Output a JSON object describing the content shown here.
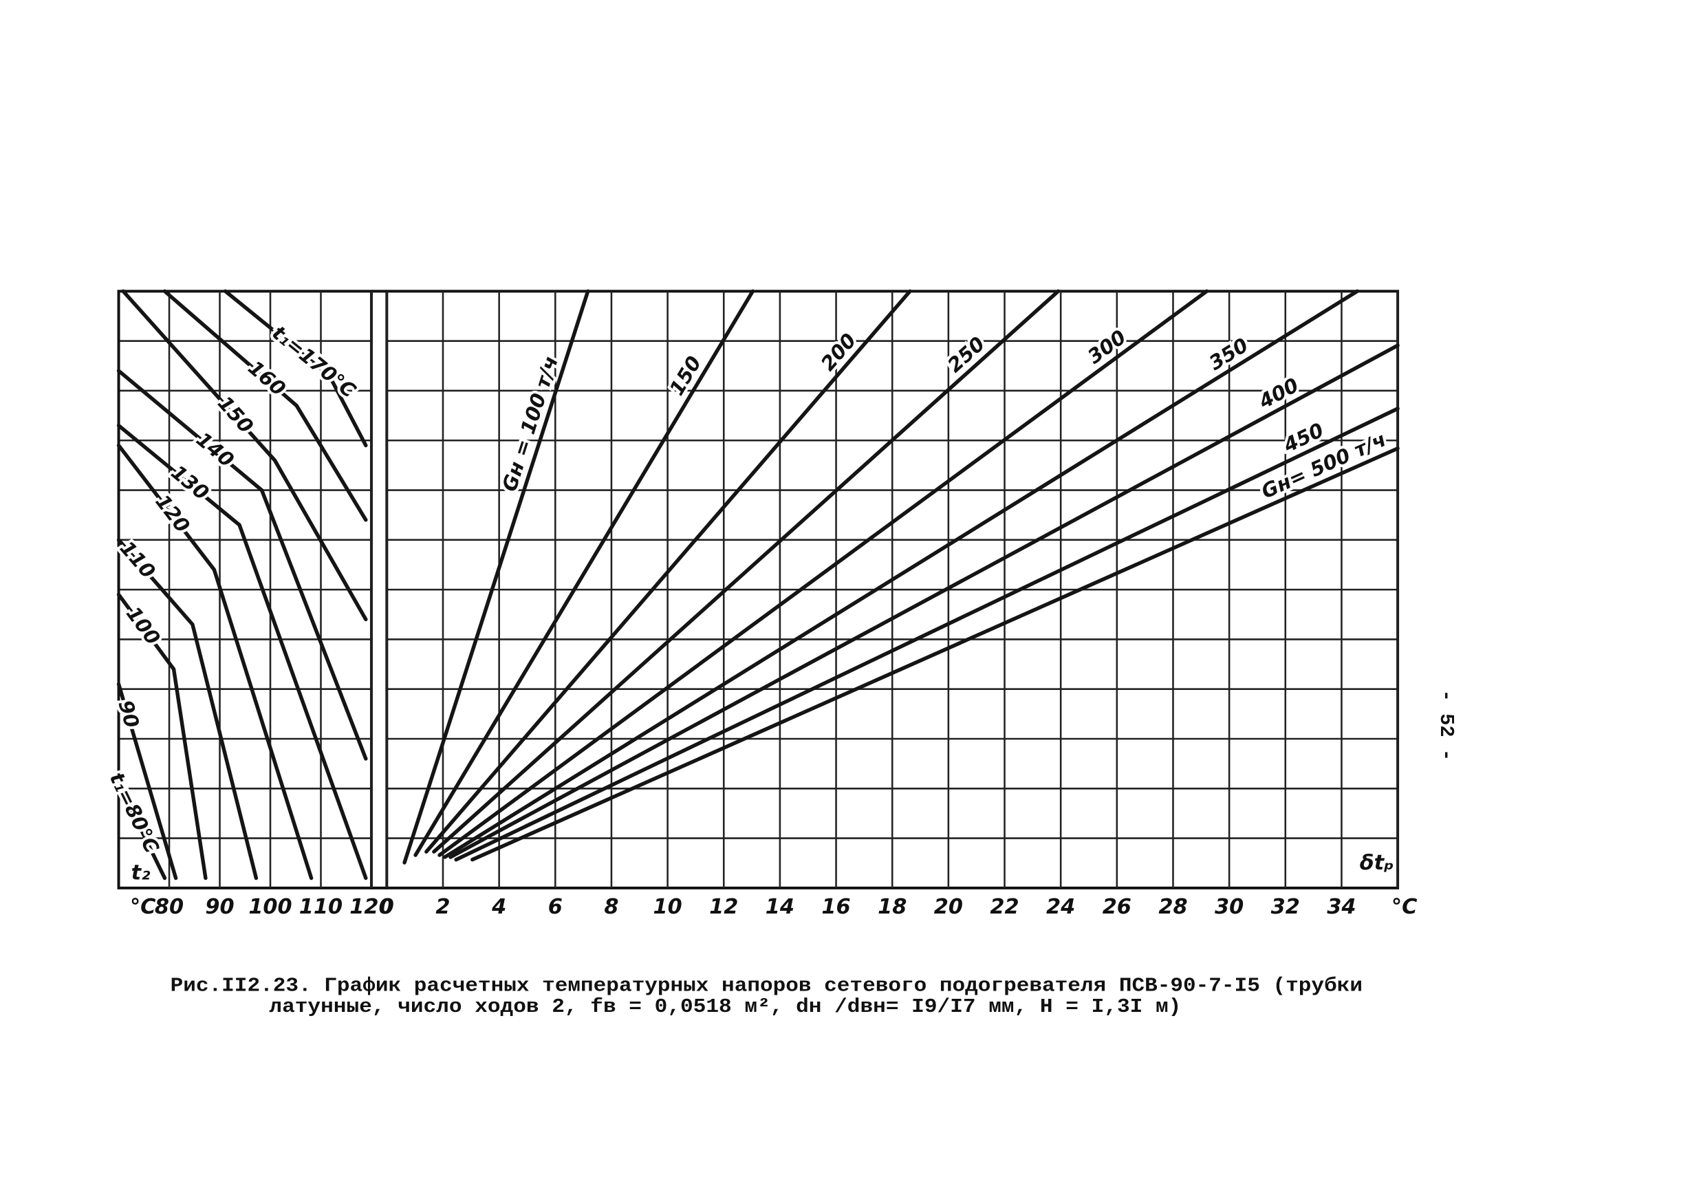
{
  "chart_data": [
    {
      "type": "line",
      "x_label": "t₂",
      "x_unit": "°C",
      "xlim": [
        70,
        120
      ],
      "xticks": [
        80,
        90,
        100,
        110,
        120
      ],
      "ylim": [
        0,
        12
      ],
      "grid": true,
      "color": "#151515",
      "series": [
        {
          "name": "t₁=170°C",
          "x": [
            91.1,
            111.7,
            118.9
          ],
          "values": [
            12,
            10.3,
            8.9
          ]
        },
        {
          "name": "160",
          "x": [
            79.1,
            105.2,
            118.9
          ],
          "values": [
            12,
            9.7,
            7.4
          ]
        },
        {
          "name": "150",
          "x": [
            70.9,
            100.9,
            118.9
          ],
          "values": [
            12,
            8.6,
            5.4
          ]
        },
        {
          "name": "140",
          "x": [
            70,
            98.3,
            118.9
          ],
          "values": [
            10.4,
            8.0,
            2.6
          ]
        },
        {
          "name": "130",
          "x": [
            70,
            93.9,
            118.9
          ],
          "values": [
            9.3,
            7.3,
            0.2
          ]
        },
        {
          "name": "120",
          "x": [
            70,
            88.9,
            108.1
          ],
          "values": [
            8.9,
            6.4,
            0.2
          ]
        },
        {
          "name": "110",
          "x": [
            70,
            84.6,
            97.2
          ],
          "values": [
            7.0,
            5.3,
            0.2
          ]
        },
        {
          "name": "100",
          "x": [
            70,
            80.9,
            87.2
          ],
          "values": [
            5.9,
            4.4,
            0.2
          ]
        },
        {
          "name": "90",
          "x": [
            70,
            81.3
          ],
          "values": [
            4.1,
            0.2
          ]
        },
        {
          "name": "t₁=80°C",
          "x": [
            70,
            79.1
          ],
          "values": [
            2.1,
            0.2
          ]
        }
      ]
    },
    {
      "type": "line",
      "x_label": "δtₚ",
      "x_unit": "°C",
      "xlim": [
        0,
        36
      ],
      "xticks": [
        0,
        2,
        4,
        6,
        8,
        10,
        12,
        14,
        16,
        18,
        20,
        22,
        24,
        26,
        28,
        30,
        32,
        34
      ],
      "ylim": [
        0,
        12
      ],
      "grid": true,
      "color": "#151515",
      "series": [
        {
          "name": "Gн = 100 т/ч",
          "x": [
            0.63,
            7.16
          ],
          "values": [
            0.51,
            12
          ]
        },
        {
          "name": "150",
          "x": [
            1.02,
            13.03
          ],
          "values": [
            0.66,
            12
          ]
        },
        {
          "name": "200",
          "x": [
            1.41,
            18.63
          ],
          "values": [
            0.73,
            12
          ]
        },
        {
          "name": "250",
          "x": [
            1.68,
            23.91
          ],
          "values": [
            0.73,
            12
          ]
        },
        {
          "name": "300",
          "x": [
            1.88,
            29.2
          ],
          "values": [
            0.66,
            12
          ]
        },
        {
          "name": "350",
          "x": [
            2.07,
            34.56
          ],
          "values": [
            0.62,
            12
          ]
        },
        {
          "name": "400",
          "x": [
            2.27,
            36
          ],
          "values": [
            0.62,
            10.91
          ]
        },
        {
          "name": "450",
          "x": [
            2.47,
            36
          ],
          "values": [
            0.57,
            9.64
          ]
        },
        {
          "name": "Gн= 500 т/ч",
          "x": [
            3.05,
            36
          ],
          "values": [
            0.57,
            8.84
          ]
        }
      ]
    }
  ],
  "caption": [
    "Рис.II2.23. График расчетных температурных напоров сетевого подогревателя ПСВ-90-7-I5 (трубки",
    "латунные, число ходов 2, fв = 0,0518 м², dн /dвн= I9/I7 мм, H = I,3I м)"
  ],
  "page_number": "- 52 -"
}
